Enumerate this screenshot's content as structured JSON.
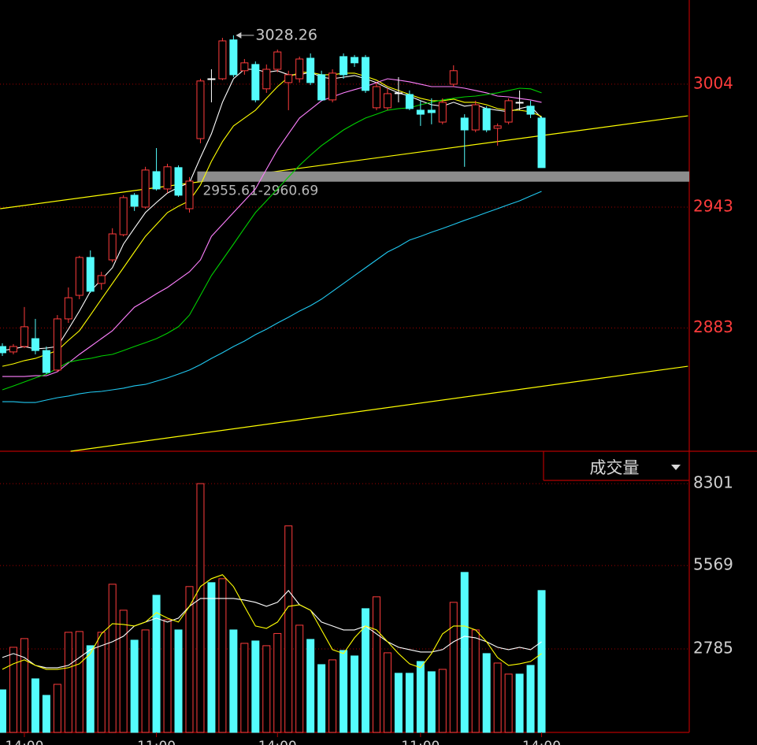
{
  "chart_data": [
    {
      "type": "candlestick",
      "open": [
        2873.8,
        2871.1,
        2873.8,
        2877.7,
        2871.8,
        2862.1,
        2887.5,
        2899.2,
        2918.0,
        2905.1,
        2916.8,
        2929.3,
        2948.9,
        2943.0,
        2960.6,
        2952.0,
        2962.6,
        2942.2,
        2977.0,
        3006.7,
        3006.7,
        3026.0,
        3010.7,
        3013.8,
        3001.7,
        3011.4,
        3004.8,
        3006.7,
        3016.9,
        3008.7,
        2996.2,
        3017.7,
        3017.3,
        3017.3,
        2992.3,
        2992.3,
        2999.7,
        2998.9,
        2991.1,
        2991.1,
        2985.2,
        3004.0,
        2987.2,
        2981.3,
        2991.9,
        2982.1,
        2985.2,
        2995.0,
        2993.1,
        2987.2
      ],
      "high": [
        2875.4,
        2875.0,
        2893.4,
        2887.5,
        2873.8,
        2889.4,
        2903.1,
        2918.8,
        2921.5,
        2910.9,
        2932.5,
        2948.9,
        2950.0,
        2963.0,
        2972.3,
        2964.5,
        2963.7,
        2957.9,
        3006.7,
        3011.4,
        3027.0,
        3028.26,
        3016.5,
        3015.3,
        3013.8,
        3021.2,
        3010.7,
        3017.7,
        3019.3,
        3010.7,
        3011.4,
        3019.3,
        3018.5,
        3018.5,
        3004.8,
        3002.1,
        3007.5,
        3000.9,
        2995.8,
        2997.0,
        2997.0,
        3013.4,
        2989.1,
        2995.8,
        2993.1,
        2984.5,
        2997.0,
        3000.9,
        2995.8,
        2988.0
      ],
      "low": [
        2869.1,
        2869.9,
        2873.0,
        2869.9,
        2860.1,
        2861.3,
        2885.5,
        2897.3,
        2900.4,
        2902.0,
        2915.6,
        2928.5,
        2941.1,
        2942.2,
        2951.2,
        2950.0,
        2948.1,
        2940.3,
        2974.7,
        2995.0,
        3006.0,
        3007.5,
        3008.7,
        2995.0,
        2999.7,
        3009.9,
        2991.1,
        3004.8,
        3003.6,
        2995.8,
        2995.0,
        3006.7,
        3012.6,
        2999.7,
        2991.1,
        2991.1,
        2995.0,
        2991.1,
        2983.3,
        2984.1,
        2984.1,
        3002.8,
        2963.0,
        2980.2,
        2980.2,
        2973.5,
        2984.1,
        2991.1,
        2987.2,
        2962.6
      ],
      "close": [
        2870.7,
        2873.8,
        2883.6,
        2871.8,
        2860.9,
        2887.5,
        2898.0,
        2918.0,
        2901.2,
        2909.0,
        2929.7,
        2947.7,
        2943.4,
        2961.4,
        2952.0,
        2963.0,
        2948.9,
        2955.9,
        3005.6,
        3006.7,
        3025.5,
        3008.7,
        3014.6,
        2996.2,
        3011.4,
        3020.0,
        3008.7,
        3016.5,
        3004.8,
        2996.2,
        3009.5,
        3008.7,
        3014.6,
        3000.9,
        3002.8,
        2999.3,
        2999.7,
        2991.9,
        2989.1,
        2989.9,
        2995.0,
        3010.7,
        2981.3,
        2993.8,
        2981.3,
        2983.3,
        2995.8,
        2995.0,
        2989.1,
        2962.6
      ],
      "up_color": "#ff3c3c",
      "down_color": "#54fcfc",
      "doji_color": "#ffffff",
      "ma_lines": [
        {
          "color": "#ffffff",
          "values": [
            2871.8,
            2872.6,
            2873.8,
            2872.6,
            2873.0,
            2873.8,
            2882.4,
            2891.4,
            2901.2,
            2907.0,
            2912.9,
            2924.6,
            2932.5,
            2940.3,
            2945.3,
            2950.0,
            2952.8,
            2955.1,
            2967.6,
            2979.4,
            2995.0,
            3006.7,
            3011.4,
            3011.4,
            3009.9,
            3010.7,
            3008.7,
            3008.7,
            3009.9,
            3007.5,
            3006.7,
            3007.5,
            3008.3,
            3006.7,
            3004.8,
            3002.0,
            2999.7,
            2998.1,
            2995.8,
            2993.8,
            2993.1,
            2995.0,
            2993.1,
            2993.8,
            2991.9,
            2991.1,
            2990.3,
            2991.9,
            2993.1,
            2987.2
          ]
        },
        {
          "color": "#ffff00",
          "values": [
            2864.0,
            2865.2,
            2866.8,
            2867.9,
            2869.9,
            2871.8,
            2876.9,
            2881.6,
            2889.4,
            2897.3,
            2905.1,
            2912.9,
            2920.7,
            2928.5,
            2934.4,
            2940.3,
            2943.4,
            2946.1,
            2954.0,
            2965.7,
            2975.5,
            2983.3,
            2987.2,
            2991.1,
            2997.0,
            3002.8,
            3007.5,
            3009.9,
            3009.9,
            3008.7,
            3008.7,
            3009.5,
            3009.5,
            3007.9,
            3006.0,
            3002.8,
            3000.9,
            2998.9,
            2997.0,
            2995.8,
            2995.8,
            2996.6,
            2995.0,
            2995.0,
            2993.8,
            2991.9,
            2991.1,
            2991.1,
            2990.3,
            2988.0
          ]
        },
        {
          "color": "#ff80ff",
          "values": [
            2858.9,
            2858.9,
            2858.9,
            2859.3,
            2859.3,
            2861.3,
            2865.6,
            2869.9,
            2873.8,
            2877.7,
            2881.6,
            2887.5,
            2893.3,
            2896.5,
            2900.0,
            2903.1,
            2907.0,
            2910.9,
            2916.8,
            2928.5,
            2934.4,
            2940.3,
            2946.1,
            2952.0,
            2961.8,
            2971.5,
            2979.4,
            2987.2,
            2991.5,
            2995.8,
            2997.7,
            2999.7,
            3001.3,
            3002.8,
            3004.8,
            3006.7,
            3006.0,
            3005.2,
            3004.0,
            3002.8,
            3002.8,
            3002.8,
            3002.0,
            3000.9,
            2999.7,
            2998.1,
            2997.7,
            2996.9,
            2996.2,
            2995.0
          ]
        },
        {
          "color": "#00d000",
          "values": [
            2852.3,
            2854.2,
            2856.2,
            2858.2,
            2860.1,
            2862.9,
            2866.0,
            2867.1,
            2867.9,
            2869.1,
            2869.9,
            2871.8,
            2873.8,
            2875.7,
            2877.7,
            2880.4,
            2883.6,
            2889.4,
            2899.2,
            2909.0,
            2916.8,
            2924.6,
            2932.5,
            2940.3,
            2946.1,
            2952.0,
            2957.9,
            2963.7,
            2968.8,
            2973.5,
            2977.4,
            2981.3,
            2984.4,
            2987.2,
            2989.1,
            2991.1,
            2991.9,
            2992.3,
            2993.8,
            2995.0,
            2996.2,
            2997.0,
            2997.7,
            2998.1,
            2998.9,
            2999.7,
            3000.9,
            3002.0,
            3001.7,
            2999.7
          ]
        },
        {
          "color": "#20c8f0",
          "values": [
            2846.4,
            2846.4,
            2846.0,
            2846.0,
            2847.2,
            2848.4,
            2849.2,
            2850.3,
            2851.1,
            2851.5,
            2852.3,
            2853.1,
            2854.3,
            2855.0,
            2856.6,
            2858.2,
            2860.1,
            2862.1,
            2864.8,
            2867.9,
            2870.7,
            2873.8,
            2876.5,
            2879.7,
            2882.4,
            2885.5,
            2888.3,
            2891.4,
            2894.1,
            2897.3,
            2901.2,
            2905.1,
            2909.0,
            2912.9,
            2916.8,
            2920.7,
            2923.4,
            2926.6,
            2928.5,
            2930.5,
            2932.4,
            2934.4,
            2936.4,
            2938.3,
            2940.3,
            2942.2,
            2944.2,
            2946.1,
            2948.5,
            2950.8
          ]
        }
      ],
      "trendlines": [
        {
          "color": "#ffff00",
          "x": [
            -0.2,
            62.3
          ],
          "values": [
            2942.2,
            2988.3
          ]
        },
        {
          "color": "#ffff00",
          "x": [
            6.2,
            62.3
          ],
          "values": [
            2821.8,
            2864.0
          ]
        }
      ],
      "band": {
        "start": 18,
        "low": 2955.61,
        "high": 2960.69,
        "label": "2955.61-2960.69",
        "color": "#8c8c8c"
      },
      "ylim": [
        2821.8,
        3045.8
      ],
      "yticks": [
        3004,
        2943,
        2883
      ],
      "grid": true
    },
    {
      "type": "bar",
      "title": "成交量",
      "categories": [
        null,
        null,
        "14:00",
        null,
        null,
        null,
        null,
        null,
        null,
        null,
        null,
        null,
        null,
        null,
        "11:00",
        null,
        null,
        null,
        null,
        null,
        null,
        null,
        null,
        null,
        null,
        "14:00",
        null,
        null,
        null,
        null,
        null,
        null,
        null,
        null,
        null,
        null,
        null,
        null,
        "11:00",
        null,
        null,
        null,
        null,
        null,
        null,
        null,
        null,
        null,
        null,
        "14:00"
      ],
      "values": [
        1420,
        2840,
        3130,
        1788,
        1236,
        1604,
        3340,
        3366,
        2893,
        3340,
        4944,
        4077,
        3077,
        3419,
        4576,
        3761,
        3419,
        4866,
        8301,
        4997,
        5129,
        3419,
        2972,
        3051,
        2893,
        3300,
        6891,
        3577,
        3103,
        2262,
        2420,
        2735,
        2551,
        4129,
        4524,
        2656,
        1973,
        1973,
        2367,
        2025,
        2104,
        4340,
        5339,
        3419,
        2630,
        2314,
        1946,
        1946,
        2236,
        4734
      ],
      "ma_lines": [
        {
          "color": "#ffffff",
          "values": [
            2499,
            2630,
            2499,
            2236,
            2157,
            2157,
            2236,
            2499,
            2762,
            2893,
            3025,
            3209,
            3551,
            3682,
            3814,
            3682,
            3814,
            4208,
            4471,
            4471,
            4471,
            4471,
            4418,
            4340,
            4208,
            4340,
            4734,
            4261,
            4077,
            3682,
            3551,
            3419,
            3419,
            3551,
            3288,
            3025,
            2840,
            2762,
            2683,
            2683,
            2762,
            3025,
            3209,
            3156,
            3025,
            2840,
            2762,
            2840,
            2762,
            3025
          ]
        },
        {
          "color": "#ffff00",
          "values": [
            2104,
            2288,
            2420,
            2236,
            2104,
            2104,
            2157,
            2288,
            2630,
            3288,
            3629,
            3603,
            3551,
            3682,
            3998,
            3814,
            3682,
            4208,
            4866,
            5129,
            5260,
            4866,
            4208,
            3551,
            3472,
            3682,
            4208,
            4261,
            4077,
            3419,
            2762,
            2630,
            3156,
            3551,
            3419,
            3025,
            2630,
            2288,
            2157,
            2630,
            3288,
            3551,
            3551,
            3419,
            3025,
            2499,
            2236,
            2288,
            2367,
            2630
          ]
        }
      ],
      "ylim": [
        0,
        9250
      ],
      "yticks": [
        8301,
        5569,
        2785
      ],
      "grid": true
    }
  ]
}
